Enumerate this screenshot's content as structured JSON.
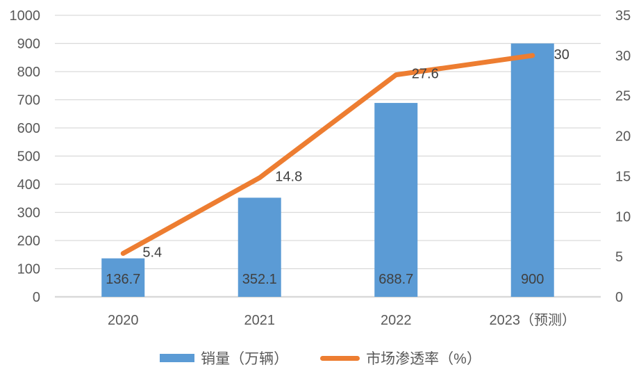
{
  "colors": {
    "bar": "#5B9BD5",
    "line": "#ED7D31",
    "axis_text": "#595959",
    "data_label": "#404040",
    "gridline": "#D9D9D9",
    "background": "#FFFFFF"
  },
  "chart_data": {
    "type": "combo",
    "title": "",
    "grid": true,
    "legend_position": "bottom",
    "categories": [
      "2020",
      "2021",
      "2022",
      "2023（预测）"
    ],
    "series": [
      {
        "name": "销量（万辆）",
        "type": "bar",
        "axis": "left",
        "color": "#5B9BD5",
        "values": [
          136.7,
          352.1,
          688.7,
          900
        ],
        "labels": [
          "136.7",
          "352.1",
          "688.7",
          "900"
        ]
      },
      {
        "name": "市场渗透率（%）",
        "type": "line",
        "axis": "right",
        "color": "#ED7D31",
        "values": [
          5.4,
          14.8,
          27.6,
          30
        ],
        "labels": [
          "5.4",
          "14.8",
          "27.6",
          "30"
        ]
      }
    ],
    "left_axis": {
      "min": 0,
      "max": 1000,
      "step": 100,
      "tick_labels": [
        "0",
        "100",
        "200",
        "300",
        "400",
        "500",
        "600",
        "700",
        "800",
        "900",
        "1000"
      ]
    },
    "right_axis": {
      "min": 0,
      "max": 35,
      "step": 5,
      "tick_labels": [
        "0",
        "5",
        "10",
        "15",
        "20",
        "25",
        "30",
        "35"
      ]
    }
  }
}
